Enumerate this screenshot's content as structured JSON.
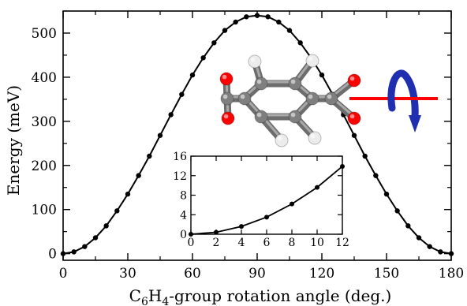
{
  "chart_data": [
    {
      "type": "line",
      "xlabel_main": "C",
      "xlabel_sub": "6",
      "xlabel_mid": "H",
      "xlabel_sub2": "4",
      "xlabel_rest": "-group rotation angle (deg.)",
      "ylabel": "Energy (meV)",
      "xlim": [
        0,
        180
      ],
      "ylim": [
        -15,
        550
      ],
      "xticks": [
        0,
        30,
        60,
        90,
        120,
        150,
        180
      ],
      "yticks": [
        0,
        100,
        200,
        300,
        400,
        500
      ],
      "series": [
        {
          "x": [
            0,
            5,
            10,
            15,
            20,
            25,
            30,
            35,
            40,
            45,
            50,
            55,
            60,
            65,
            70,
            75,
            80,
            85,
            90,
            95,
            100,
            105,
            110,
            115,
            120,
            125,
            130,
            135,
            140,
            145,
            150,
            155,
            160,
            165,
            170,
            175,
            180
          ],
          "y": [
            0,
            4,
            16,
            36,
            63,
            97,
            135,
            177,
            221,
            268,
            315,
            361,
            405,
            444,
            478,
            506,
            525,
            537,
            540,
            537,
            525,
            506,
            478,
            444,
            405,
            361,
            315,
            268,
            221,
            177,
            135,
            97,
            63,
            36,
            16,
            4,
            0
          ]
        }
      ]
    },
    {
      "type": "line",
      "xlim": [
        0,
        12
      ],
      "ylim": [
        0,
        16
      ],
      "xticks": [
        0,
        2,
        4,
        6,
        8,
        10,
        12
      ],
      "yticks": [
        0,
        4,
        8,
        12,
        16
      ],
      "series": [
        {
          "x": [
            0,
            2,
            4,
            6,
            8,
            10,
            12
          ],
          "y": [
            0,
            0.4,
            1.6,
            3.5,
            6.2,
            9.6,
            13.9
          ]
        }
      ]
    }
  ],
  "molecule": {
    "carbon_color": "#7f7f7f",
    "oxygen_color": "#ff0000",
    "hydrogen_color": "#ececec",
    "axis_color": "#ff0000",
    "arrow_color": "#1f2fb0"
  }
}
